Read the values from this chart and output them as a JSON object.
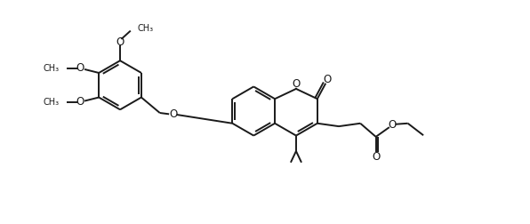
{
  "bg_color": "#ffffff",
  "line_color": "#1a1a1a",
  "line_width": 1.4,
  "figsize": [
    5.96,
    2.52
  ],
  "dpi": 100,
  "xlim": [
    0,
    14
  ],
  "ylim": [
    -1.5,
    6.0
  ]
}
